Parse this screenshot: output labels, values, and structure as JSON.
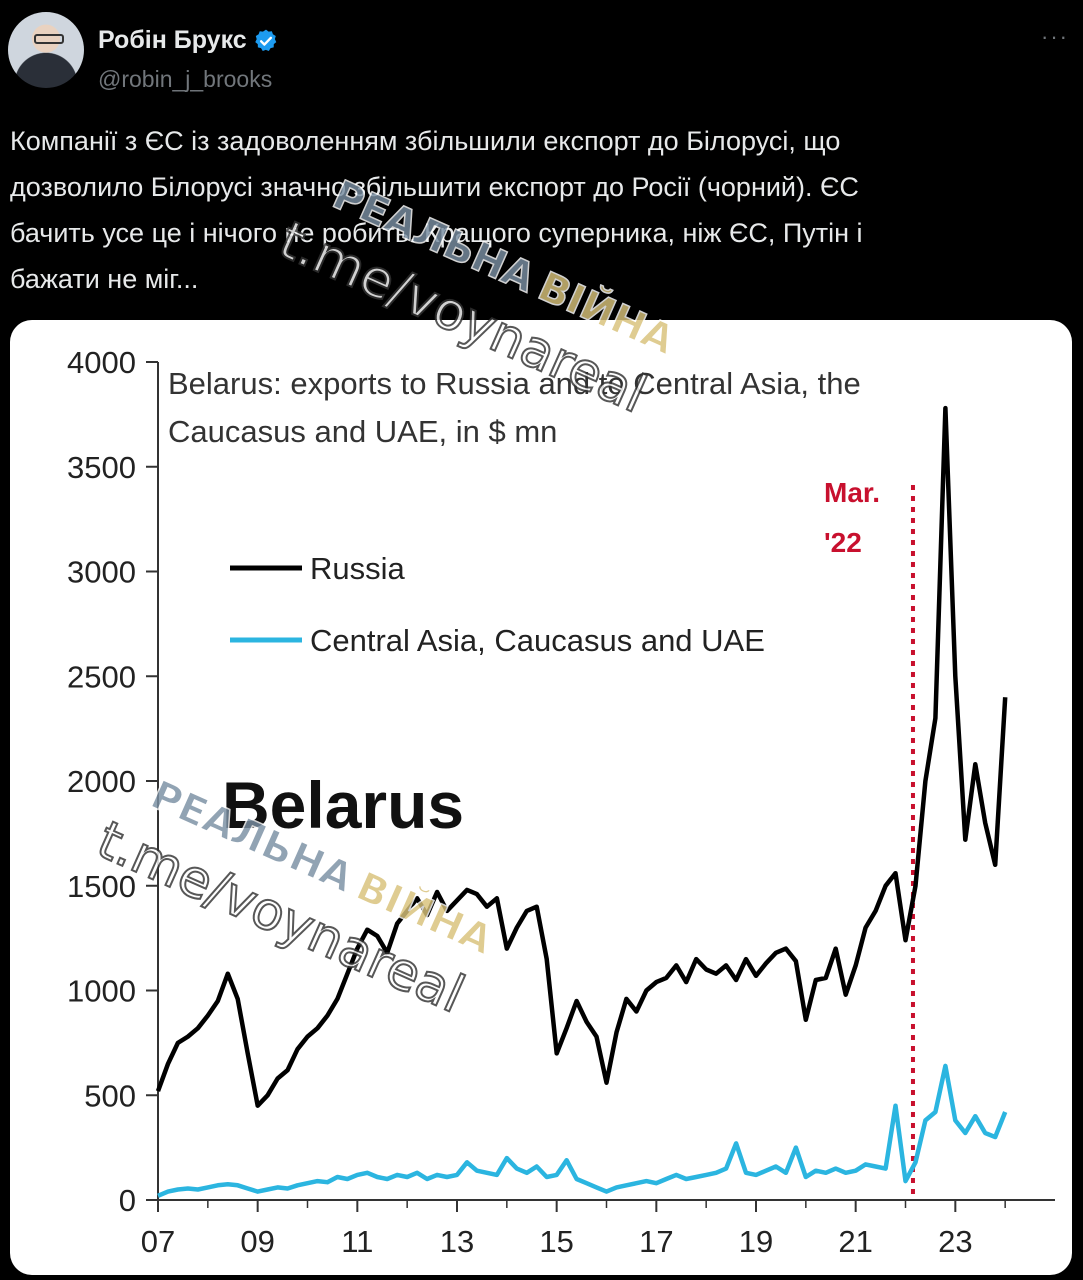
{
  "tweet": {
    "author_name": "Робін Брукс",
    "handle": "@robin_j_brooks",
    "more_icon": "ellipsis-icon",
    "verified_icon": "verified-badge-icon",
    "text": "Компанії з ЄС із задоволенням збільшили експорт до Білорусі, що\nдозволило Білорусі значно збільшити експорт до Росії (чорний). ЄС\nбачить усе це і нічого не робить. Кращого суперника, ніж ЄС, Путін і\nбажати не міг..."
  },
  "watermark": {
    "line1_a": "РЕАЛЬНА",
    "line1_b": "ВІЙНА",
    "line2": "t.me/voynareal"
  },
  "chart_data": {
    "type": "line",
    "title": "Belarus: exports to Russia and to Central Asia, the Caucasus and UAE, in $ mn",
    "title_line1": "Belarus: exports to Russia and to Central Asia, the",
    "title_line2": "Caucasus and UAE, in $ mn",
    "big_label": "Belarus",
    "annotation_line1": "Mar.",
    "annotation_line2": "'22",
    "annotation_x": 2022.15,
    "ylim": [
      0,
      4000
    ],
    "xlim": [
      2007,
      2025
    ],
    "yticks": [
      0,
      500,
      1000,
      1500,
      2000,
      2500,
      3000,
      3500,
      4000
    ],
    "ytick_labels": [
      "0",
      "500",
      "1000",
      "1500",
      "2000",
      "2500",
      "3000",
      "3500",
      "4000"
    ],
    "xticks": [
      2007,
      2009,
      2011,
      2013,
      2015,
      2017,
      2019,
      2021,
      2023
    ],
    "xtick_labels": [
      "07",
      "09",
      "11",
      "13",
      "15",
      "17",
      "19",
      "21",
      "23"
    ],
    "colors": {
      "russia": "#000000",
      "cac": "#2bb5e0",
      "annotation": "#c8102e"
    },
    "legend_placement": "upper-left",
    "series": [
      {
        "name": "Russia",
        "color": "#000000",
        "x": [
          2007.0,
          2007.2,
          2007.4,
          2007.6,
          2007.8,
          2008.0,
          2008.2,
          2008.4,
          2008.6,
          2008.8,
          2009.0,
          2009.2,
          2009.4,
          2009.6,
          2009.8,
          2010.0,
          2010.2,
          2010.4,
          2010.6,
          2010.8,
          2011.0,
          2011.2,
          2011.4,
          2011.6,
          2011.8,
          2012.0,
          2012.2,
          2012.4,
          2012.6,
          2012.8,
          2013.0,
          2013.2,
          2013.4,
          2013.6,
          2013.8,
          2014.0,
          2014.2,
          2014.4,
          2014.6,
          2014.8,
          2015.0,
          2015.2,
          2015.4,
          2015.6,
          2015.8,
          2016.0,
          2016.2,
          2016.4,
          2016.6,
          2016.8,
          2017.0,
          2017.2,
          2017.4,
          2017.6,
          2017.8,
          2018.0,
          2018.2,
          2018.4,
          2018.6,
          2018.8,
          2019.0,
          2019.2,
          2019.4,
          2019.6,
          2019.8,
          2020.0,
          2020.2,
          2020.4,
          2020.6,
          2020.8,
          2021.0,
          2021.2,
          2021.4,
          2021.6,
          2021.8,
          2022.0,
          2022.2,
          2022.4,
          2022.6,
          2022.8,
          2023.0,
          2023.2,
          2023.4,
          2023.6,
          2023.8,
          2024.0
        ],
        "values": [
          520,
          650,
          750,
          780,
          820,
          880,
          950,
          1080,
          960,
          700,
          450,
          500,
          580,
          620,
          720,
          780,
          820,
          880,
          960,
          1080,
          1200,
          1290,
          1260,
          1180,
          1320,
          1380,
          1440,
          1360,
          1470,
          1380,
          1430,
          1480,
          1460,
          1400,
          1440,
          1200,
          1300,
          1380,
          1400,
          1150,
          700,
          820,
          950,
          850,
          780,
          560,
          800,
          960,
          900,
          1000,
          1040,
          1060,
          1120,
          1040,
          1150,
          1100,
          1080,
          1120,
          1050,
          1150,
          1070,
          1130,
          1180,
          1200,
          1140,
          860,
          1050,
          1060,
          1200,
          980,
          1120,
          1300,
          1380,
          1500,
          1560,
          1240,
          1500,
          2000,
          2300,
          3780,
          2500,
          1720,
          2080,
          1800,
          1600,
          2400
        ]
      },
      {
        "name": "Central Asia, Caucasus and UAE",
        "color": "#2bb5e0",
        "x": [
          2007.0,
          2007.2,
          2007.4,
          2007.6,
          2007.8,
          2008.0,
          2008.2,
          2008.4,
          2008.6,
          2008.8,
          2009.0,
          2009.2,
          2009.4,
          2009.6,
          2009.8,
          2010.0,
          2010.2,
          2010.4,
          2010.6,
          2010.8,
          2011.0,
          2011.2,
          2011.4,
          2011.6,
          2011.8,
          2012.0,
          2012.2,
          2012.4,
          2012.6,
          2012.8,
          2013.0,
          2013.2,
          2013.4,
          2013.6,
          2013.8,
          2014.0,
          2014.2,
          2014.4,
          2014.6,
          2014.8,
          2015.0,
          2015.2,
          2015.4,
          2015.6,
          2015.8,
          2016.0,
          2016.2,
          2016.4,
          2016.6,
          2016.8,
          2017.0,
          2017.2,
          2017.4,
          2017.6,
          2017.8,
          2018.0,
          2018.2,
          2018.4,
          2018.6,
          2018.8,
          2019.0,
          2019.2,
          2019.4,
          2019.6,
          2019.8,
          2020.0,
          2020.2,
          2020.4,
          2020.6,
          2020.8,
          2021.0,
          2021.2,
          2021.4,
          2021.6,
          2021.8,
          2022.0,
          2022.2,
          2022.4,
          2022.6,
          2022.8,
          2023.0,
          2023.2,
          2023.4,
          2023.6,
          2023.8,
          2024.0
        ],
        "values": [
          20,
          40,
          50,
          55,
          50,
          60,
          70,
          75,
          70,
          55,
          40,
          50,
          60,
          55,
          70,
          80,
          90,
          85,
          110,
          100,
          120,
          130,
          110,
          100,
          120,
          110,
          130,
          100,
          120,
          110,
          120,
          180,
          140,
          130,
          120,
          200,
          150,
          130,
          160,
          110,
          120,
          190,
          100,
          80,
          60,
          40,
          60,
          70,
          80,
          90,
          80,
          100,
          120,
          100,
          110,
          120,
          130,
          150,
          270,
          130,
          120,
          140,
          160,
          130,
          250,
          110,
          140,
          130,
          150,
          130,
          140,
          170,
          160,
          150,
          450,
          90,
          180,
          380,
          420,
          640,
          380,
          320,
          400,
          320,
          300,
          420
        ]
      }
    ]
  }
}
